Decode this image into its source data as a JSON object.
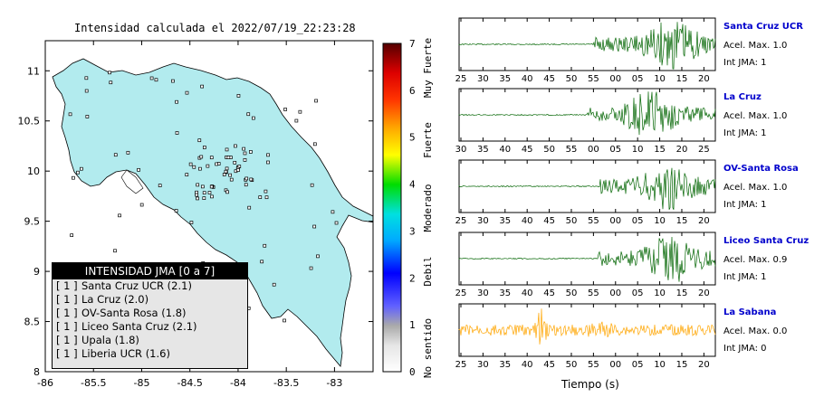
{
  "map": {
    "title": "Intensidad calculada el 2022/07/19_22:23:28",
    "x_ticks": [
      "-86",
      "-85.5",
      "-85",
      "-84.5",
      "-84",
      "-83.5",
      "-83"
    ],
    "y_ticks": [
      "11",
      "10.5",
      "10",
      "9.5",
      "9",
      "8.5",
      "8"
    ],
    "legend": {
      "header": "INTENSIDAD JMA [0 a 7]",
      "entries": [
        {
          "level": "[ 1 ]",
          "name": "Santa Cruz UCR (2.1)"
        },
        {
          "level": "[ 1 ]",
          "name": "La Cruz (2.0)"
        },
        {
          "level": "[ 1 ]",
          "name": "OV-Santa Rosa (1.8)"
        },
        {
          "level": "[ 1 ]",
          "name": "Liceo Santa Cruz (2.1)"
        },
        {
          "level": "[ 1 ]",
          "name": "Upala (1.8)"
        },
        {
          "level": "[ 1 ]",
          "name": "Liberia UCR (1.6)"
        }
      ]
    },
    "colors": {
      "land": "#b2ebee",
      "water": "#ffffff"
    }
  },
  "colorbar": {
    "ticks": [
      "7",
      "6",
      "5",
      "4",
      "3",
      "2",
      "1",
      "0"
    ],
    "labels": [
      "Muy Fuerte",
      "Fuerte",
      "Moderado",
      "Debil",
      "No sentido"
    ]
  },
  "seismograms": {
    "x_label": "Tiempo (s)",
    "stations": [
      {
        "name": "Santa Cruz UCR",
        "acel": "Acel. Max. 1.0",
        "int": "Int JMA: 1",
        "ticks": [
          "25",
          "30",
          "35",
          "40",
          "45",
          "50",
          "55",
          "00",
          "05",
          "10",
          "15",
          "20"
        ],
        "onset": 0.52,
        "peak": 0.83,
        "color": "#006400"
      },
      {
        "name": "La Cruz",
        "acel": "Acel. Max. 1.0",
        "int": "Int JMA: 1",
        "ticks": [
          "30",
          "35",
          "40",
          "45",
          "50",
          "55",
          "00",
          "05",
          "10",
          "15",
          "20",
          "25"
        ],
        "onset": 0.5,
        "peak": 0.75,
        "color": "#006400"
      },
      {
        "name": "OV-Santa Rosa",
        "acel": "Acel. Max. 1.0",
        "int": "Int JMA: 1",
        "ticks": [
          "25",
          "30",
          "35",
          "40",
          "45",
          "50",
          "55",
          "00",
          "05",
          "10",
          "15",
          "20"
        ],
        "onset": 0.55,
        "peak": 0.82,
        "color": "#006400"
      },
      {
        "name": "Liceo Santa Cruz",
        "acel": "Acel. Max. 0.9",
        "int": "Int JMA: 1",
        "ticks": [
          "25",
          "30",
          "35",
          "40",
          "45",
          "50",
          "55",
          "00",
          "05",
          "10",
          "15",
          "20"
        ],
        "onset": 0.54,
        "peak": 0.83,
        "color": "#006400"
      },
      {
        "name": "La Sabana",
        "acel": "Acel. Max. 0.0",
        "int": "Int JMA: 0",
        "ticks": [
          "25",
          "30",
          "35",
          "40",
          "45",
          "50",
          "55",
          "00",
          "05",
          "10",
          "15",
          "20"
        ],
        "onset": 0.0,
        "peak": 0.32,
        "color": "#ffa500"
      }
    ]
  },
  "chart_data": [
    {
      "type": "scatter",
      "title": "Intensidad calculada el 2022/07/19_22:23:28",
      "xlim": [
        -86,
        -82.6
      ],
      "ylim": [
        8,
        11.3
      ],
      "legend": [
        "INTENSIDAD JMA [0 a 7]"
      ]
    },
    {
      "type": "line",
      "xlabel": "Tiempo (s)",
      "series": [
        {
          "name": "Santa Cruz UCR"
        },
        {
          "name": "La Cruz"
        },
        {
          "name": "OV-Santa Rosa"
        },
        {
          "name": "Liceo Santa Cruz"
        },
        {
          "name": "La Sabana"
        }
      ]
    }
  ]
}
